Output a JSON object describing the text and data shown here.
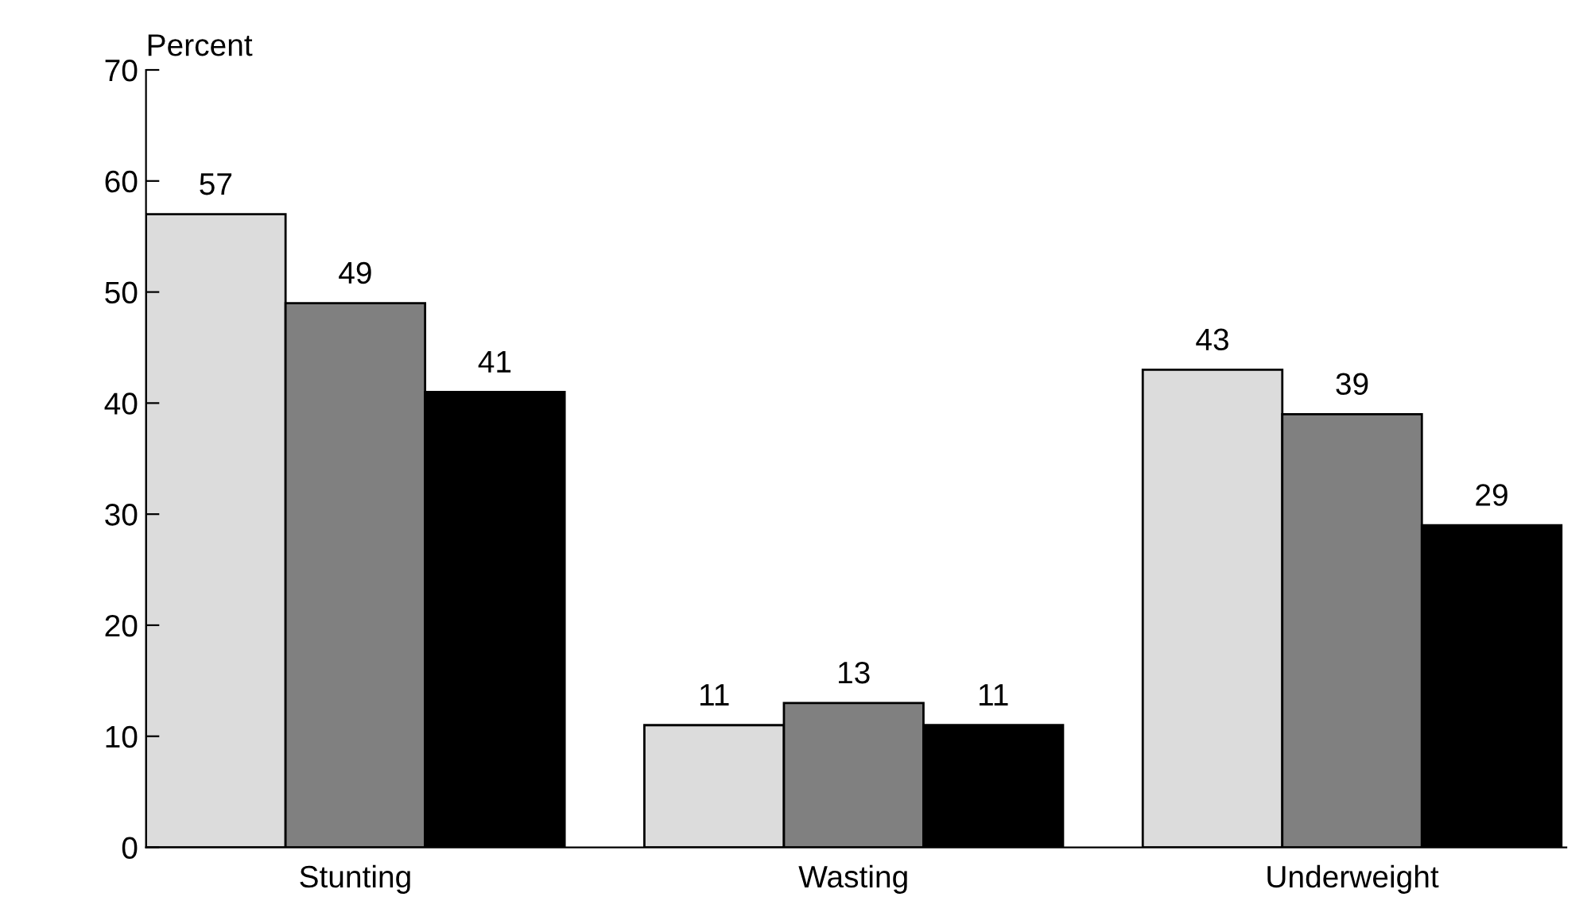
{
  "chart_data": {
    "type": "bar",
    "ylabel": "Percent",
    "categories": [
      "Stunting",
      "Wasting",
      "Underweight"
    ],
    "series": [
      {
        "color": "#dcdcdc",
        "values": [
          57,
          11,
          43
        ]
      },
      {
        "color": "#808080",
        "values": [
          49,
          13,
          39
        ]
      },
      {
        "color": "#000000",
        "values": [
          41,
          11,
          29
        ]
      }
    ],
    "ylim": [
      0,
      70
    ],
    "yticks": [
      0,
      10,
      20,
      30,
      40,
      50,
      60,
      70
    ],
    "grid": false,
    "legend": false,
    "data_labels": true
  }
}
